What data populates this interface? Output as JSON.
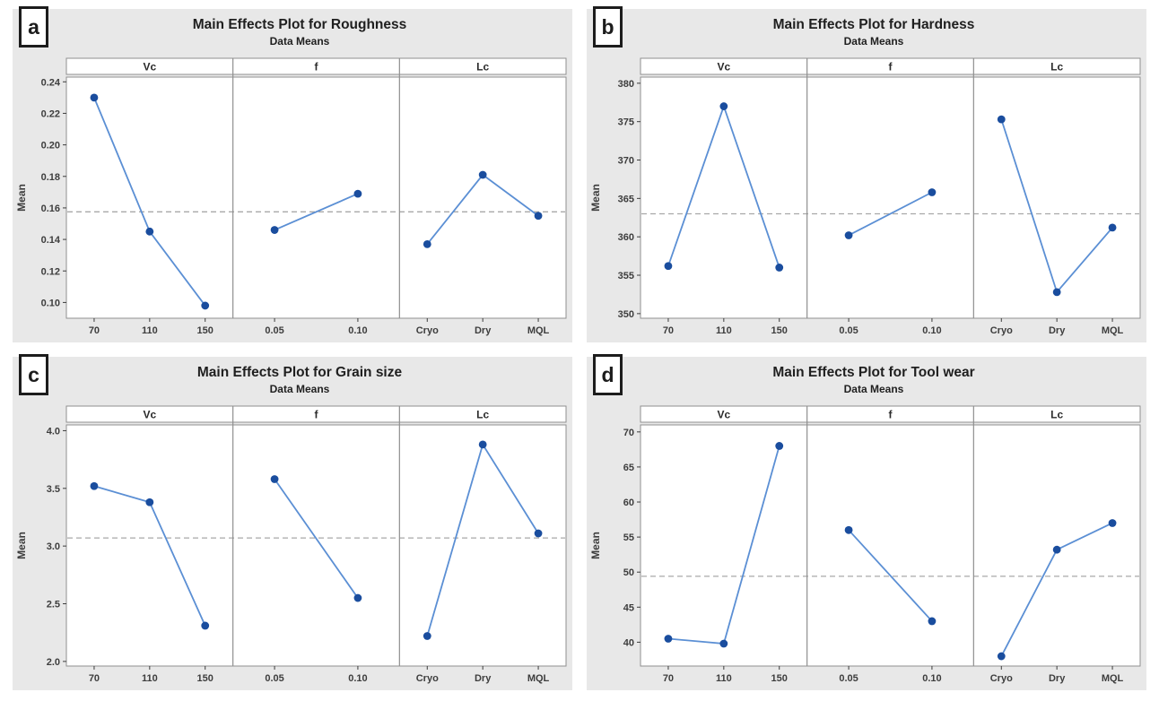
{
  "figure": {
    "description": "Four Minitab main effects plots arranged in a 2x2 grid",
    "colors": {
      "quadrant_background": "#e8e8e8",
      "plot_background": "#ffffff",
      "frame_border": "#8f8f8f",
      "line": "#5b8fd4",
      "marker": "#1a4d9e",
      "grand_mean_dash": "#a8a8a8",
      "tick_text": "#3d3d3d",
      "title_text": "#1f1f1f",
      "label_box_border": "#1c1c1c"
    }
  },
  "chart_data": [
    {
      "panel_label": "a",
      "type": "line",
      "title": "Main Effects Plot for Roughness",
      "subtitle": "Data Means",
      "ylabel": "Mean",
      "ylim": [
        0.09,
        0.243
      ],
      "yticks": [
        0.1,
        0.12,
        0.14,
        0.16,
        0.18,
        0.2,
        0.22,
        0.24
      ],
      "ytick_labels": [
        "0.10",
        "0.12",
        "0.14",
        "0.16",
        "0.18",
        "0.20",
        "0.22",
        "0.24"
      ],
      "grand_mean_line": 0.1575,
      "grid": false,
      "legend": "none",
      "panels": [
        {
          "header": "Vc",
          "categories": [
            "70",
            "110",
            "150"
          ],
          "values": [
            0.23,
            0.145,
            0.098
          ]
        },
        {
          "header": "f",
          "categories": [
            "0.05",
            "0.10"
          ],
          "values": [
            0.146,
            0.169
          ]
        },
        {
          "header": "Lc",
          "categories": [
            "Cryo",
            "Dry",
            "MQL"
          ],
          "values": [
            0.137,
            0.181,
            0.155
          ]
        }
      ]
    },
    {
      "panel_label": "b",
      "type": "line",
      "title": "Main Effects Plot for Hardness",
      "subtitle": "Data Means",
      "ylabel": "Mean",
      "ylim": [
        349.4,
        380.8
      ],
      "yticks": [
        350,
        355,
        360,
        365,
        370,
        375,
        380
      ],
      "ytick_labels": [
        "350",
        "355",
        "360",
        "365",
        "370",
        "375",
        "380"
      ],
      "grand_mean_line": 363.0,
      "grid": false,
      "legend": "none",
      "panels": [
        {
          "header": "Vc",
          "categories": [
            "70",
            "110",
            "150"
          ],
          "values": [
            356.2,
            377.0,
            356.0
          ]
        },
        {
          "header": "f",
          "categories": [
            "0.05",
            "0.10"
          ],
          "values": [
            360.2,
            365.8
          ]
        },
        {
          "header": "Lc",
          "categories": [
            "Cryo",
            "Dry",
            "MQL"
          ],
          "values": [
            375.3,
            352.8,
            361.2
          ]
        }
      ]
    },
    {
      "panel_label": "c",
      "type": "line",
      "title": "Main Effects Plot for Grain size",
      "subtitle": "Data Means",
      "ylabel": "Mean",
      "ylim": [
        1.96,
        4.05
      ],
      "yticks": [
        2.0,
        2.5,
        3.0,
        3.5,
        4.0
      ],
      "ytick_labels": [
        "2.0",
        "2.5",
        "3.0",
        "3.5",
        "4.0"
      ],
      "grand_mean_line": 3.07,
      "grid": false,
      "legend": "none",
      "panels": [
        {
          "header": "Vc",
          "categories": [
            "70",
            "110",
            "150"
          ],
          "values": [
            3.52,
            3.38,
            2.31
          ]
        },
        {
          "header": "f",
          "categories": [
            "0.05",
            "0.10"
          ],
          "values": [
            3.58,
            2.55
          ]
        },
        {
          "header": "Lc",
          "categories": [
            "Cryo",
            "Dry",
            "MQL"
          ],
          "values": [
            2.22,
            3.88,
            3.11
          ]
        }
      ]
    },
    {
      "panel_label": "d",
      "type": "line",
      "title": "Main Effects Plot for Tool wear",
      "subtitle": "Data Means",
      "ylabel": "Mean",
      "ylim": [
        36.6,
        71.0
      ],
      "yticks": [
        40,
        45,
        50,
        55,
        60,
        65,
        70
      ],
      "ytick_labels": [
        "40",
        "45",
        "50",
        "55",
        "60",
        "65",
        "70"
      ],
      "grand_mean_line": 49.4,
      "grid": false,
      "legend": "none",
      "panels": [
        {
          "header": "Vc",
          "categories": [
            "70",
            "110",
            "150"
          ],
          "values": [
            40.5,
            39.8,
            68.0
          ]
        },
        {
          "header": "f",
          "categories": [
            "0.05",
            "0.10"
          ],
          "values": [
            56.0,
            43.0
          ]
        },
        {
          "header": "Lc",
          "categories": [
            "Cryo",
            "Dry",
            "MQL"
          ],
          "values": [
            38.0,
            53.2,
            57.0
          ]
        }
      ]
    }
  ]
}
